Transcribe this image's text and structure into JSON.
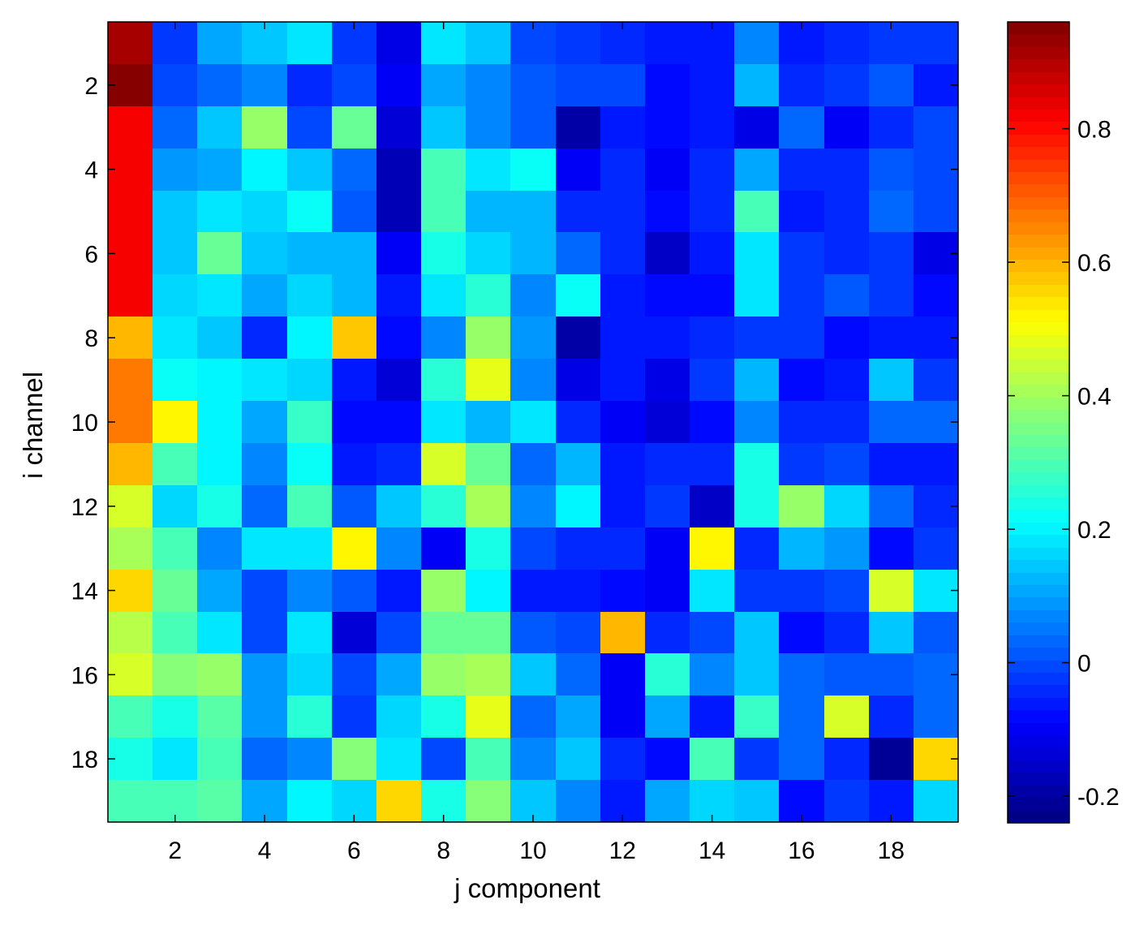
{
  "chart_data": {
    "type": "heatmap",
    "xlabel": "j component",
    "ylabel": "i channel",
    "x_ticks": [
      2,
      4,
      6,
      8,
      10,
      12,
      14,
      16,
      18
    ],
    "y_ticks": [
      2,
      4,
      6,
      8,
      10,
      12,
      14,
      16,
      18
    ],
    "x_range": [
      0.5,
      19.5
    ],
    "y_range": [
      0.5,
      19.5
    ],
    "colorbar": {
      "range": [
        -0.24,
        0.96
      ],
      "ticks": [
        -0.2,
        0,
        0.2,
        0.4,
        0.6,
        0.8
      ],
      "tick_labels": [
        "-0.2",
        "0",
        "0.2",
        "0.4",
        "0.6",
        "0.8"
      ],
      "colormap": "jet"
    },
    "rows": [
      [
        0.92,
        -0.02,
        0.1,
        0.14,
        0.18,
        -0.02,
        -0.12,
        0.18,
        0.14,
        0.0,
        -0.02,
        -0.04,
        -0.06,
        -0.06,
        0.06,
        -0.06,
        -0.04,
        -0.02,
        -0.02
      ],
      [
        0.96,
        0.0,
        0.04,
        0.06,
        -0.04,
        0.0,
        -0.1,
        0.1,
        0.06,
        0.02,
        0.0,
        0.0,
        -0.08,
        -0.06,
        0.12,
        -0.04,
        -0.02,
        0.02,
        -0.06
      ],
      [
        0.82,
        0.04,
        0.14,
        0.38,
        0.0,
        0.34,
        -0.14,
        0.14,
        0.06,
        0.02,
        -0.2,
        -0.06,
        -0.08,
        -0.06,
        -0.12,
        0.04,
        -0.1,
        -0.04,
        0.0
      ],
      [
        0.82,
        0.08,
        0.1,
        0.2,
        0.14,
        0.04,
        -0.18,
        0.3,
        0.18,
        0.22,
        -0.1,
        -0.04,
        -0.1,
        -0.04,
        0.1,
        -0.04,
        -0.04,
        0.02,
        0.0
      ],
      [
        0.82,
        0.14,
        0.18,
        0.16,
        0.22,
        0.02,
        -0.18,
        0.3,
        0.12,
        0.12,
        -0.04,
        -0.04,
        -0.08,
        -0.04,
        0.3,
        -0.06,
        -0.04,
        0.04,
        0.0
      ],
      [
        0.82,
        0.14,
        0.34,
        0.14,
        0.12,
        0.12,
        -0.1,
        0.24,
        0.16,
        0.12,
        0.04,
        -0.04,
        -0.16,
        -0.06,
        0.18,
        -0.02,
        -0.04,
        -0.02,
        -0.12
      ],
      [
        0.82,
        0.16,
        0.18,
        0.1,
        0.16,
        0.12,
        -0.06,
        0.18,
        0.26,
        0.06,
        0.22,
        -0.06,
        -0.08,
        -0.08,
        0.18,
        -0.02,
        0.02,
        -0.02,
        -0.08
      ],
      [
        0.6,
        0.18,
        0.14,
        -0.04,
        0.2,
        0.58,
        -0.08,
        0.06,
        0.38,
        0.08,
        -0.2,
        -0.06,
        -0.06,
        -0.04,
        -0.02,
        -0.02,
        -0.08,
        -0.06,
        -0.06
      ],
      [
        0.66,
        0.22,
        0.2,
        0.18,
        0.16,
        -0.06,
        -0.14,
        0.26,
        0.48,
        0.06,
        -0.12,
        -0.06,
        -0.12,
        -0.02,
        0.12,
        -0.08,
        -0.06,
        0.14,
        -0.02
      ],
      [
        0.66,
        0.52,
        0.2,
        0.1,
        0.28,
        -0.08,
        -0.08,
        0.18,
        0.12,
        0.18,
        -0.04,
        -0.1,
        -0.14,
        -0.08,
        0.06,
        -0.04,
        -0.04,
        0.04,
        0.04
      ],
      [
        0.6,
        0.3,
        0.2,
        0.06,
        0.22,
        -0.06,
        -0.04,
        0.46,
        0.34,
        0.04,
        0.12,
        -0.06,
        -0.04,
        -0.04,
        0.24,
        -0.02,
        0.0,
        -0.06,
        -0.06
      ],
      [
        0.46,
        0.16,
        0.24,
        0.04,
        0.3,
        0.02,
        0.14,
        0.26,
        0.4,
        0.06,
        0.2,
        -0.06,
        -0.02,
        -0.16,
        0.24,
        0.38,
        0.16,
        0.04,
        -0.04
      ],
      [
        0.4,
        0.3,
        0.06,
        0.18,
        0.18,
        0.52,
        0.06,
        -0.1,
        0.24,
        0.0,
        -0.04,
        -0.04,
        -0.1,
        0.52,
        -0.04,
        0.12,
        0.08,
        -0.08,
        -0.02
      ],
      [
        0.56,
        0.34,
        0.1,
        0.0,
        0.06,
        0.02,
        -0.06,
        0.38,
        0.2,
        -0.06,
        -0.06,
        -0.08,
        -0.1,
        0.18,
        -0.02,
        -0.02,
        0.0,
        0.46,
        0.18
      ],
      [
        0.42,
        0.3,
        0.18,
        0.0,
        0.18,
        -0.14,
        0.0,
        0.34,
        0.34,
        0.02,
        0.0,
        0.6,
        -0.04,
        0.0,
        0.14,
        -0.08,
        -0.04,
        0.14,
        0.02
      ],
      [
        0.46,
        0.36,
        0.38,
        0.08,
        0.16,
        0.0,
        0.1,
        0.38,
        0.4,
        0.14,
        0.04,
        -0.1,
        0.26,
        0.06,
        0.14,
        0.04,
        0.02,
        0.02,
        0.04
      ],
      [
        0.3,
        0.24,
        0.32,
        0.08,
        0.26,
        -0.02,
        0.16,
        0.24,
        0.48,
        0.04,
        0.1,
        -0.1,
        0.1,
        -0.06,
        0.28,
        0.04,
        0.46,
        -0.04,
        0.04
      ],
      [
        0.24,
        0.18,
        0.3,
        0.04,
        0.06,
        0.36,
        0.18,
        0.0,
        0.3,
        0.06,
        0.14,
        -0.04,
        -0.08,
        0.3,
        -0.02,
        0.04,
        -0.04,
        -0.22,
        0.56
      ],
      [
        0.3,
        0.3,
        0.32,
        0.1,
        0.2,
        0.16,
        0.56,
        0.24,
        0.36,
        0.14,
        0.06,
        -0.06,
        0.1,
        0.16,
        0.14,
        -0.08,
        -0.02,
        -0.06,
        0.16
      ]
    ]
  }
}
